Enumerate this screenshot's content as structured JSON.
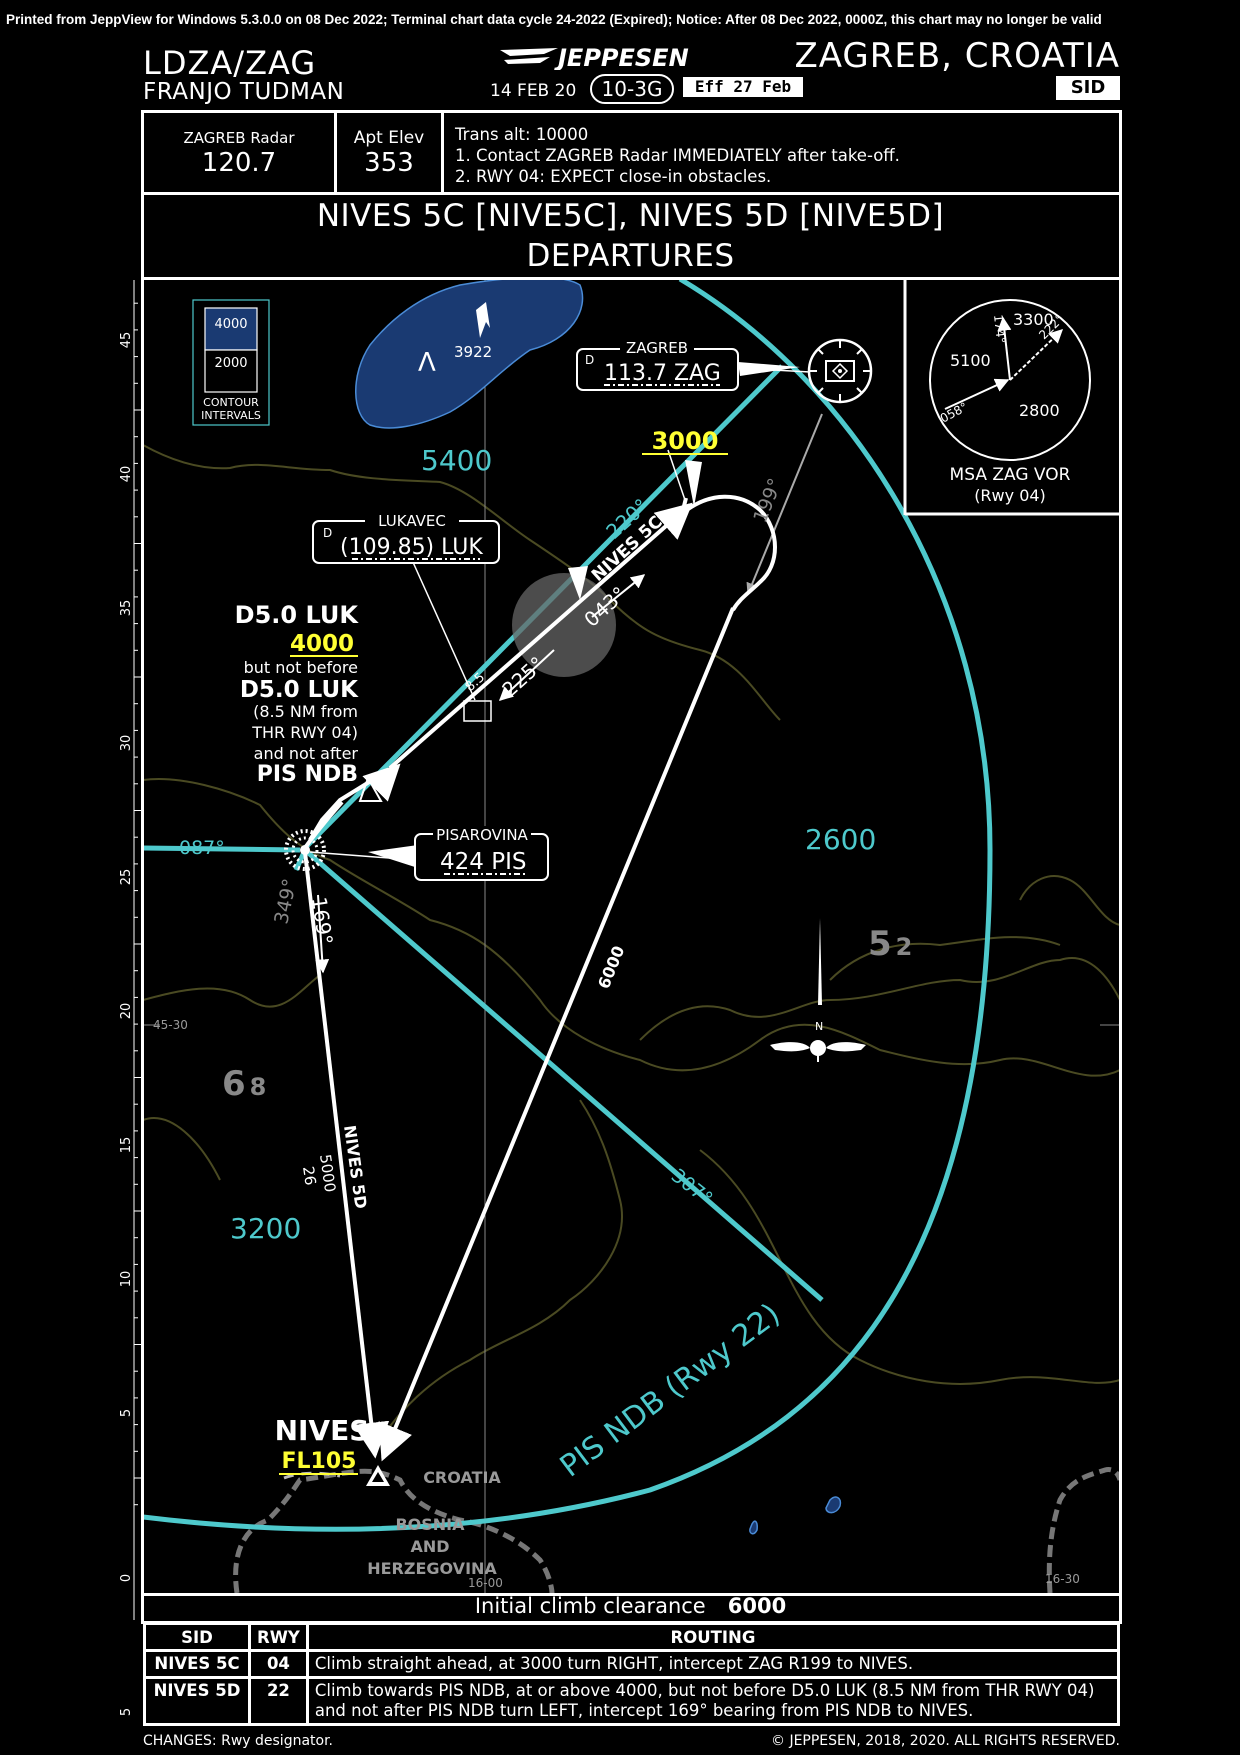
{
  "header": {
    "printed_notice": "Printed from JeppView for Windows 5.3.0.0 on 08 Dec 2022; Terminal chart data cycle 24-2022 (Expired); Notice: After 08 Dec 2022, 0000Z, this chart may no longer be valid",
    "airport_id": "LDZA/ZAG",
    "airport_name": "FRANJO TUDMAN",
    "brand": "JEPPESEN",
    "date": "14 FEB 20",
    "chart_number": "10-3G",
    "effective": "Eff 27 Feb",
    "city": "ZAGREB, CROATIA",
    "procedure_type": "SID"
  },
  "comms": {
    "radar_label": "ZAGREB Radar",
    "radar_freq": "120.7",
    "elev_label": "Apt Elev",
    "elev_value": "353",
    "notes": [
      "Trans alt: 10000",
      "1. Contact ZAGREB Radar IMMEDIATELY after take-off.",
      "2. RWY 04: EXPECT close-in obstacles."
    ]
  },
  "title": {
    "line1": "NIVES 5C [NIVE5C], NIVES 5D [NIVE5D]",
    "line2": "DEPARTURES"
  },
  "plan": {
    "contour_4000": "4000",
    "contour_2000": "2000",
    "contour_caption1": "CONTOUR",
    "contour_caption2": "INTERVALS",
    "spot_elev": "3922",
    "msa_5400": "5400",
    "msa_2600": "2600",
    "msa_3200": "3200",
    "grid_52": "5",
    "grid_52_small": "2",
    "grid_68": "6",
    "grid_68_small": "8",
    "zag_name": "ZAGREB",
    "zag_d": "D",
    "zag_freq": "113.7 ZAG",
    "luk_name": "LUKAVEC",
    "luk_d": "D",
    "luk_freq": "(109.85) LUK",
    "pis_name": "PISAROVINA",
    "pis_freq": "424 PIS",
    "alt_3000": "3000",
    "d50_1": "D5.0 LUK",
    "alt_4000": "4000",
    "but_not_before": "but not before",
    "d50_2": "D5.0 LUK",
    "nm_note1": "(8.5 NM from",
    "nm_note2": "THR RWY 04)",
    "not_after": "and not after",
    "pis_ndb": "PIS NDB",
    "c220": "220°",
    "nives5c": "NIVES 5C",
    "c043": "043°",
    "c225": "225°",
    "d85": "8.5",
    "c199": "199°",
    "c087": "087°",
    "c349": "349°",
    "c169": "169°",
    "alt6000": "6000",
    "nives5d": "NIVES 5D",
    "mea5000": "5000",
    "dist26": "26",
    "c307": "307°",
    "arc_label": "PIS NDB (Rwy 22)",
    "nives": "NIVES",
    "fl105": "FL105",
    "croatia": "CROATIA",
    "bosnia1": "BOSNIA",
    "bosnia2": "AND",
    "bosnia3": "HERZEGOVINA",
    "lat_4530": "45-30",
    "lon_1600": "16-00",
    "lon_1630": "16-30",
    "north": "N",
    "msa_title": "MSA ZAG VOR",
    "msa_sub": "(Rwy 04)",
    "msa_174": "174°",
    "msa_222": "222°",
    "msa_058": "058°",
    "msa_3300": "3300",
    "msa_5100": "5100",
    "msa_2800": "2800",
    "scale": [
      "45",
      "40",
      "35",
      "30",
      "25",
      "20",
      "15",
      "10",
      "5",
      "0",
      "5"
    ]
  },
  "initial_climb": {
    "label": "Initial climb clearance",
    "value": "6000"
  },
  "routing_table": {
    "headers": [
      "SID",
      "RWY",
      "ROUTING"
    ],
    "rows": [
      {
        "sid": "NIVES 5C",
        "rwy": "04",
        "text": "Climb straight ahead, at 3000 turn RIGHT, intercept ZAG R199 to NIVES."
      },
      {
        "sid": "NIVES 5D",
        "rwy": "22",
        "text": "Climb towards PIS NDB, at or above 4000, but not before D5.0 LUK (8.5 NM from THR RWY 04) and not after PIS NDB turn LEFT, intercept 169° bearing from PIS NDB to NIVES."
      }
    ]
  },
  "footer": {
    "changes": "CHANGES:  Rwy designator.",
    "copyright": "© JEPPESEN, 2018, 2020. ALL RIGHTS RESERVED."
  },
  "colors": {
    "cyan": "#4ec9cc",
    "yellow": "#ffff33",
    "terrain_line": "#4a4a22",
    "water_fill": "#1a3a72",
    "water_stroke": "#4a8bd6",
    "gray": "#888888"
  }
}
